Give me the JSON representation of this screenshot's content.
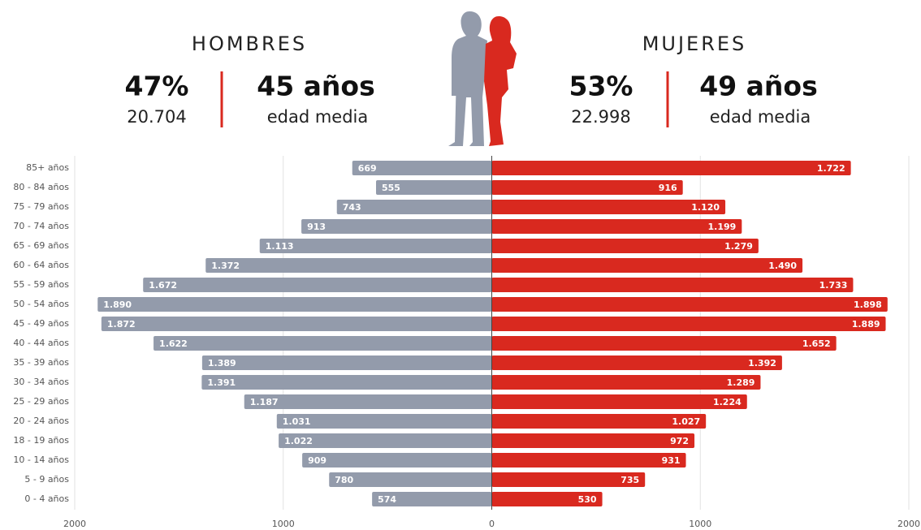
{
  "chart_data": {
    "type": "pyramid",
    "panels": [
      {
        "title": "HOMBRES",
        "percent": "47%",
        "count": "20.704",
        "age": "45 años",
        "age_label": "edad media"
      },
      {
        "title": "MUJERES",
        "percent": "53%",
        "count": "22.998",
        "age": "49 años",
        "age_label": "edad media"
      }
    ],
    "categories": [
      "85+ años",
      "80 - 84 años",
      "75 - 79 años",
      "70 - 74 años",
      "65 - 69 años",
      "60 - 64 años",
      "55 - 59 años",
      "50 - 54 años",
      "45 - 49 años",
      "40 - 44 años",
      "35 - 39 años",
      "30 - 34 años",
      "25 - 29 años",
      "20 - 24 años",
      "18 - 19 años",
      "10 - 14 años",
      "5 - 9 años",
      "0 - 4 años"
    ],
    "series": [
      {
        "name": "HOMBRES",
        "side": "left",
        "color": "#939bab",
        "values": [
          669,
          555,
          743,
          913,
          1113,
          1372,
          1672,
          1890,
          1872,
          1622,
          1389,
          1391,
          1187,
          1031,
          1022,
          909,
          780,
          574
        ],
        "value_labels": [
          "669",
          "555",
          "743",
          "913",
          "1.113",
          "1.372",
          "1.672",
          "1.890",
          "1.872",
          "1.622",
          "1.389",
          "1.391",
          "1.187",
          "1.031",
          "1.022",
          "909",
          "780",
          "574"
        ]
      },
      {
        "name": "MUJERES",
        "side": "right",
        "color": "#d9291f",
        "values": [
          1722,
          916,
          1120,
          1199,
          1279,
          1490,
          1733,
          1898,
          1889,
          1652,
          1392,
          1289,
          1224,
          1027,
          972,
          931,
          735,
          530
        ],
        "value_labels": [
          "1.722",
          "916",
          "1.120",
          "1.199",
          "1.279",
          "1.490",
          "1.733",
          "1.898",
          "1.889",
          "1.652",
          "1.392",
          "1.289",
          "1.224",
          "1.027",
          "972",
          "931",
          "735",
          "530"
        ]
      }
    ],
    "xlim": [
      -2000,
      2000
    ],
    "xticks": [
      {
        "value": -2000,
        "label": "2000"
      },
      {
        "value": -1000,
        "label": "1000"
      },
      0,
      1000,
      2000
    ],
    "grid": true
  }
}
